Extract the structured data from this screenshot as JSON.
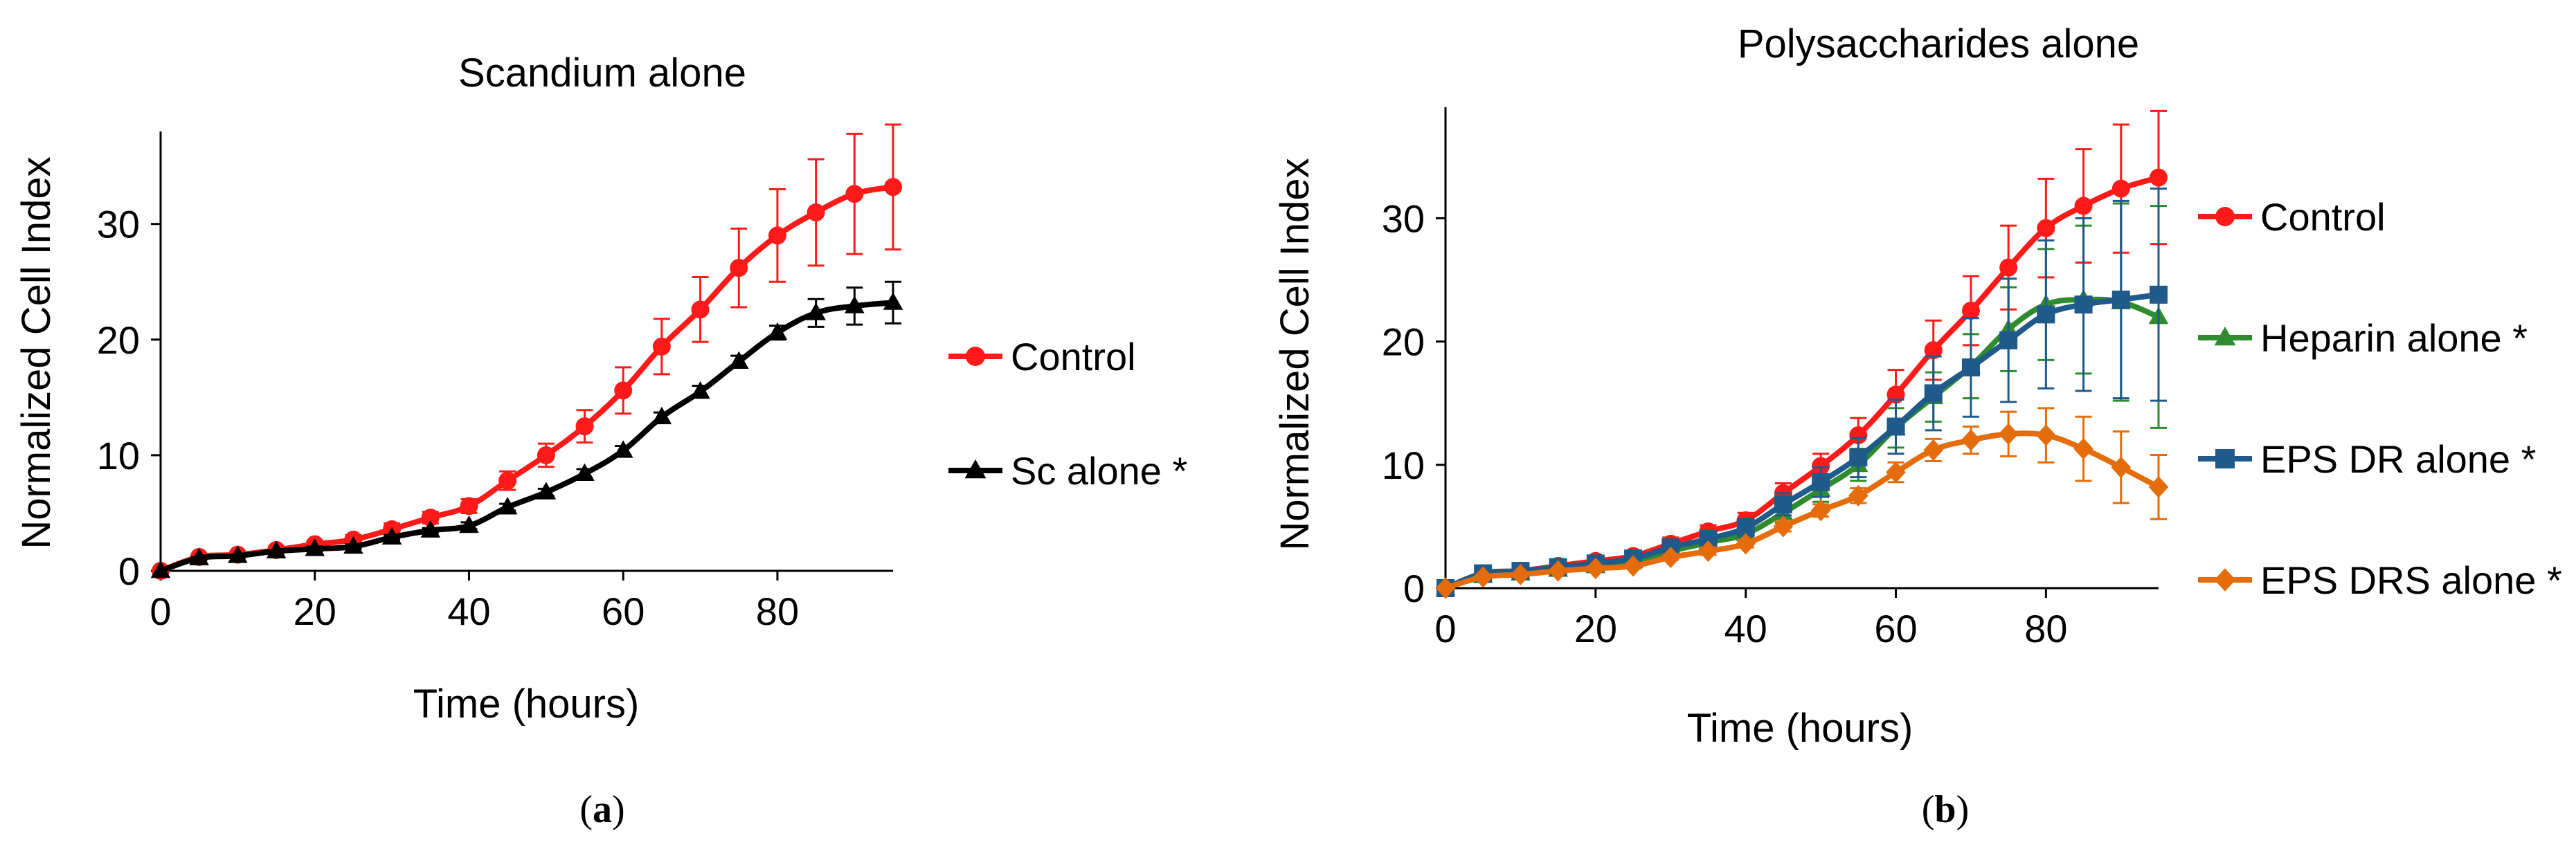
{
  "chart_data": [
    {
      "type": "line",
      "title": "Scandium alone",
      "xlabel": "Time (hours)",
      "ylabel": "Normalized Cell Index",
      "xlim": [
        0,
        95
      ],
      "ylim": [
        0,
        38
      ],
      "xticks": [
        0,
        20,
        40,
        60,
        80
      ],
      "yticks": [
        0,
        10,
        20,
        30
      ],
      "legend_position": "right",
      "caption_letter": "a",
      "x": [
        0,
        5,
        10,
        15,
        20,
        25,
        30,
        35,
        40,
        45,
        50,
        55,
        60,
        65,
        70,
        75,
        80,
        85,
        90,
        95
      ],
      "series": [
        {
          "name": "Control",
          "color": "#ff1a1a",
          "marker": "circle",
          "values": [
            0,
            1.2,
            1.4,
            1.8,
            2.3,
            2.7,
            3.6,
            4.6,
            5.6,
            7.8,
            10,
            12.5,
            15.6,
            19.4,
            22.6,
            26.2,
            29,
            31,
            32.6,
            33.2
          ],
          "errors": [
            0,
            0.2,
            0.2,
            0.3,
            0.3,
            0.4,
            0.5,
            0.5,
            0.6,
            0.8,
            1,
            1.4,
            2,
            2.4,
            2.8,
            3.4,
            4,
            4.6,
            5.2,
            5.4
          ]
        },
        {
          "name": "Sc alone *",
          "color": "#000000",
          "marker": "triangle",
          "values": [
            0,
            1.1,
            1.3,
            1.7,
            1.9,
            2.1,
            2.9,
            3.5,
            3.9,
            5.5,
            6.8,
            8.4,
            10.4,
            13.3,
            15.5,
            18.1,
            20.6,
            22.3,
            22.9,
            23.2
          ],
          "errors": [
            0,
            0.1,
            0.1,
            0.1,
            0.2,
            0.2,
            0.2,
            0.2,
            0.3,
            0.3,
            0.3,
            0.4,
            0.4,
            0.4,
            0.5,
            0.5,
            0.6,
            1.2,
            1.6,
            1.8
          ]
        }
      ]
    },
    {
      "type": "line",
      "title": "Polysaccharides alone",
      "xlabel": "Time (hours)",
      "ylabel": "Normalized Cell Index",
      "xlim": [
        0,
        95
      ],
      "ylim": [
        0,
        39
      ],
      "xticks": [
        0,
        20,
        40,
        60,
        80
      ],
      "yticks": [
        0,
        10,
        20,
        30
      ],
      "legend_position": "right",
      "caption_letter": "b",
      "x": [
        0,
        5,
        10,
        15,
        20,
        25,
        30,
        35,
        40,
        45,
        50,
        55,
        60,
        65,
        70,
        75,
        80,
        85,
        90,
        95
      ],
      "series": [
        {
          "name": "Control",
          "color": "#ff1a1a",
          "marker": "circle",
          "values": [
            0,
            1.2,
            1.4,
            1.8,
            2.2,
            2.6,
            3.6,
            4.6,
            5.5,
            7.7,
            9.9,
            12.4,
            15.7,
            19.3,
            22.5,
            26,
            29.2,
            31,
            32.4,
            33.3
          ],
          "errors": [
            0,
            0.2,
            0.2,
            0.3,
            0.3,
            0.4,
            0.5,
            0.5,
            0.6,
            0.8,
            1,
            1.4,
            2,
            2.4,
            2.8,
            3.4,
            4,
            4.6,
            5.2,
            5.4
          ]
        },
        {
          "name": "Heparin alone *",
          "color": "#2e8b2e",
          "marker": "triangle",
          "values": [
            0,
            1,
            1.2,
            1.5,
            1.8,
            2.2,
            3,
            3.7,
            4.4,
            6.1,
            8,
            10,
            13,
            15.5,
            18,
            21,
            23,
            23.4,
            23.2,
            22
          ],
          "errors": [
            0,
            0.2,
            0.2,
            0.3,
            0.3,
            0.3,
            0.4,
            0.5,
            0.6,
            0.8,
            1,
            1.3,
            1.6,
            2,
            2.6,
            3.4,
            4.5,
            6,
            8,
            9
          ]
        },
        {
          "name": "EPS DR alone *",
          "color": "#1f5a8a",
          "marker": "square",
          "values": [
            0,
            1.2,
            1.4,
            1.7,
            2,
            2.4,
            3.3,
            4,
            4.9,
            6.8,
            8.6,
            10.6,
            13.1,
            15.8,
            17.9,
            20.1,
            22.2,
            23,
            23.4,
            23.8
          ],
          "errors": [
            0,
            0.2,
            0.2,
            0.3,
            0.3,
            0.4,
            0.5,
            0.6,
            0.7,
            0.9,
            1.2,
            1.6,
            2.2,
            3,
            4,
            5,
            6,
            7,
            8,
            8.6
          ]
        },
        {
          "name": "EPS DRS alone *",
          "color": "#e46c0a",
          "marker": "diamond",
          "values": [
            0,
            0.9,
            1.1,
            1.4,
            1.6,
            1.8,
            2.5,
            3,
            3.6,
            5,
            6.3,
            7.5,
            9.4,
            11.2,
            12,
            12.5,
            12.4,
            11.3,
            9.8,
            8.2
          ],
          "errors": [
            0,
            0.1,
            0.1,
            0.1,
            0.2,
            0.2,
            0.2,
            0.3,
            0.3,
            0.4,
            0.5,
            0.6,
            0.8,
            0.9,
            1.1,
            1.8,
            2.2,
            2.6,
            2.9,
            2.6
          ]
        }
      ]
    }
  ]
}
